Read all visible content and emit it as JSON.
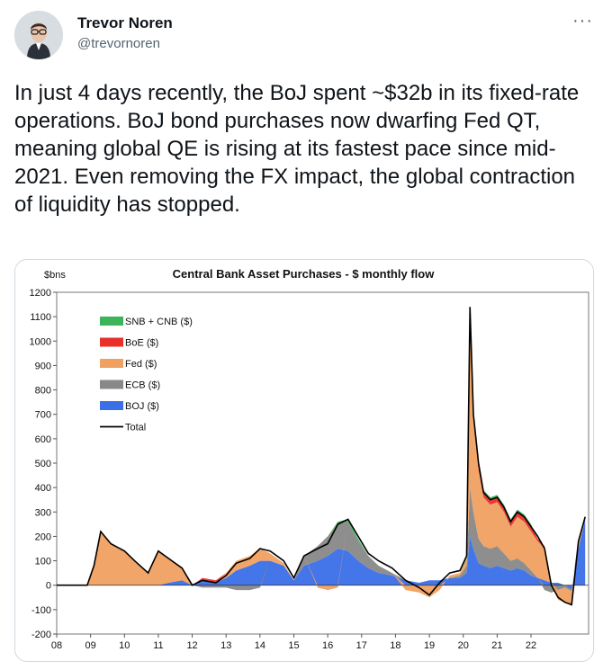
{
  "author": {
    "name": "Trevor Noren",
    "handle": "@trevornoren"
  },
  "tweet": {
    "text": "In just 4 days recently, the BoJ spent ~$32b in its fixed-rate operations. BoJ bond purchases now dwarfing Fed QT, meaning global QE is rising at its fastest pace since mid-2021. Even removing the FX impact, the global contraction of liquidity has stopped."
  },
  "menu": {
    "icon": "more-horizontal-icon",
    "glyph": "···"
  },
  "chart_data": {
    "type": "area",
    "title": "Central Bank Asset Purchases - $ monthly flow",
    "ylabel": "$bns",
    "ylim": [
      -200,
      1200
    ],
    "xlim": [
      2008,
      2023.7
    ],
    "yticks": [
      "1200",
      "1100",
      "1000",
      "900",
      "800",
      "700",
      "600",
      "500",
      "400",
      "300",
      "200",
      "100",
      "0",
      "-100",
      "-200"
    ],
    "xticks": [
      "08",
      "09",
      "10",
      "11",
      "12",
      "13",
      "14",
      "15",
      "16",
      "17",
      "18",
      "19",
      "20",
      "21",
      "22"
    ],
    "legend_position": "upper-left",
    "grid": false,
    "series": [
      {
        "name": "SNB + CNB ($)",
        "color": "#3cb45a"
      },
      {
        "name": "BoE ($)",
        "color": "#e8302a"
      },
      {
        "name": "Fed ($)",
        "color": "#f0a060"
      },
      {
        "name": "ECB ($)",
        "color": "#888888"
      },
      {
        "name": "BOJ ($)",
        "color": "#3a6fe8"
      },
      {
        "name": "Total",
        "color": "#000000"
      }
    ],
    "x": [
      2008,
      2008.5,
      2008.9,
      2009.1,
      2009.3,
      2009.6,
      2010,
      2010.3,
      2010.7,
      2011,
      2011.3,
      2011.7,
      2012,
      2012.3,
      2012.7,
      2013,
      2013.3,
      2013.7,
      2014,
      2014.3,
      2014.7,
      2015,
      2015.3,
      2015.7,
      2016,
      2016.3,
      2016.6,
      2016.9,
      2017.2,
      2017.5,
      2017.9,
      2018.3,
      2018.7,
      2019,
      2019.3,
      2019.6,
      2019.9,
      2020.1,
      2020.2,
      2020.3,
      2020.45,
      2020.6,
      2020.8,
      2021,
      2021.2,
      2021.4,
      2021.6,
      2021.8,
      2022,
      2022.2,
      2022.4,
      2022.6,
      2022.8,
      2023,
      2023.2,
      2023.4,
      2023.6
    ],
    "totals": [
      0,
      0,
      0,
      80,
      220,
      170,
      140,
      100,
      50,
      140,
      110,
      70,
      0,
      20,
      10,
      40,
      90,
      110,
      150,
      140,
      100,
      30,
      120,
      150,
      170,
      250,
      270,
      200,
      130,
      100,
      70,
      20,
      -10,
      -40,
      10,
      50,
      60,
      120,
      1140,
      700,
      500,
      380,
      350,
      360,
      320,
      260,
      300,
      280,
      240,
      200,
      150,
      0,
      -50,
      -70,
      -80,
      180,
      280
    ],
    "boj": [
      0,
      0,
      0,
      0,
      0,
      0,
      0,
      0,
      0,
      0,
      10,
      20,
      0,
      20,
      10,
      30,
      60,
      80,
      100,
      100,
      80,
      20,
      80,
      100,
      120,
      150,
      140,
      100,
      70,
      50,
      40,
      20,
      10,
      20,
      20,
      30,
      30,
      50,
      200,
      150,
      90,
      80,
      70,
      80,
      70,
      60,
      70,
      60,
      40,
      30,
      20,
      10,
      10,
      0,
      -20,
      150,
      270
    ],
    "ecb": [
      0,
      0,
      0,
      0,
      0,
      0,
      0,
      0,
      0,
      0,
      0,
      0,
      0,
      -10,
      -10,
      -10,
      -20,
      -20,
      -10,
      0,
      0,
      0,
      40,
      60,
      80,
      100,
      120,
      80,
      50,
      30,
      10,
      0,
      0,
      0,
      0,
      0,
      10,
      30,
      200,
      150,
      100,
      80,
      80,
      80,
      60,
      40,
      40,
      30,
      20,
      0,
      -20,
      -30,
      -20,
      -10,
      -5,
      0,
      0
    ],
    "fed": [
      0,
      0,
      0,
      80,
      220,
      170,
      140,
      100,
      50,
      140,
      100,
      50,
      0,
      0,
      0,
      20,
      40,
      40,
      50,
      30,
      10,
      0,
      0,
      -10,
      -20,
      -10,
      0,
      0,
      0,
      0,
      0,
      -20,
      -30,
      -50,
      -20,
      10,
      10,
      30,
      700,
      380,
      280,
      200,
      180,
      180,
      170,
      140,
      170,
      170,
      160,
      150,
      130,
      0,
      -40,
      -60,
      -60,
      20,
      0
    ],
    "boe": [
      0,
      0,
      0,
      0,
      0,
      0,
      0,
      0,
      0,
      0,
      0,
      0,
      0,
      10,
      10,
      0,
      0,
      0,
      0,
      0,
      0,
      0,
      0,
      0,
      0,
      0,
      0,
      0,
      0,
      0,
      0,
      0,
      0,
      0,
      0,
      0,
      0,
      0,
      30,
      20,
      20,
      20,
      20,
      20,
      20,
      20,
      20,
      20,
      20,
      10,
      10,
      0,
      0,
      0,
      0,
      0,
      0
    ],
    "snb": [
      0,
      0,
      0,
      0,
      0,
      0,
      0,
      0,
      0,
      0,
      0,
      0,
      0,
      0,
      0,
      0,
      0,
      0,
      0,
      0,
      0,
      0,
      0,
      0,
      0,
      10,
      10,
      10,
      0,
      0,
      0,
      0,
      0,
      0,
      0,
      0,
      0,
      10,
      10,
      10,
      10,
      10,
      10,
      10,
      10,
      10,
      10,
      10,
      10,
      0,
      0,
      0,
      0,
      0,
      0,
      10,
      10
    ]
  }
}
